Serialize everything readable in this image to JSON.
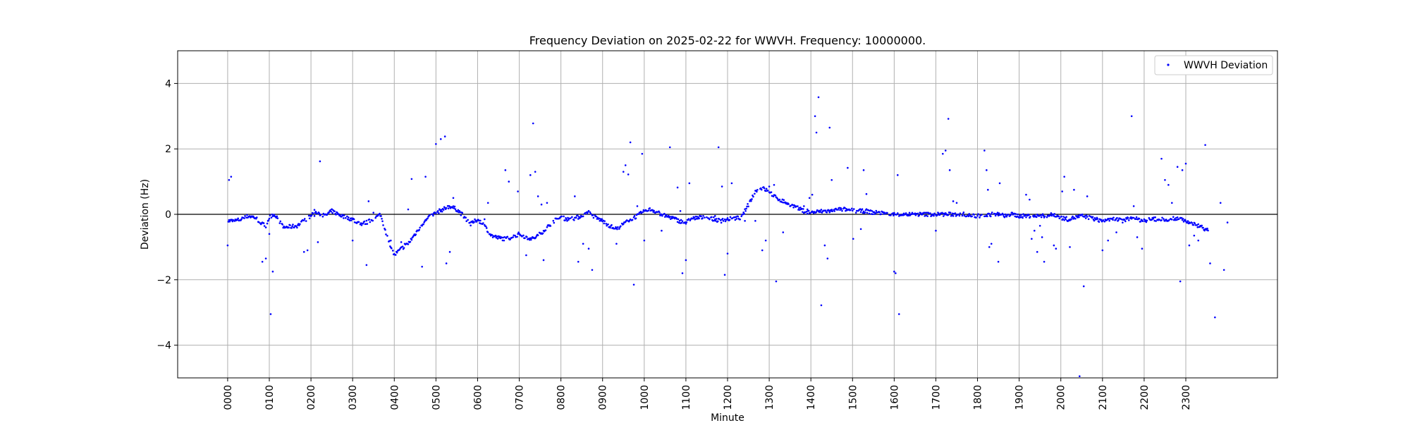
{
  "chart_data": {
    "type": "scatter",
    "title": "Frequency Deviation on 2025-02-22 for WWVH. Frequency: 10000000.",
    "xlabel": "Minute",
    "ylabel": "Deviation (Hz)",
    "xlim": [
      -72,
      1512
    ],
    "ylim": [
      -5,
      5
    ],
    "y_ticks": [
      -4,
      -2,
      0,
      2,
      4
    ],
    "y_tick_labels": [
      "−4",
      "−2",
      "0",
      "2",
      "4"
    ],
    "x_ticks": [
      0,
      60,
      120,
      180,
      240,
      300,
      360,
      420,
      480,
      540,
      600,
      660,
      720,
      780,
      840,
      900,
      960,
      1020,
      1080,
      1140,
      1200,
      1260,
      1320,
      1380
    ],
    "x_tick_labels": [
      "0000",
      "0100",
      "0200",
      "0300",
      "0400",
      "0500",
      "0600",
      "0700",
      "0800",
      "0900",
      "1000",
      "1100",
      "1200",
      "1300",
      "1400",
      "1500",
      "1600",
      "1700",
      "1800",
      "1900",
      "2000",
      "2100",
      "2200",
      "2300"
    ],
    "grid": true,
    "zero_line": true,
    "legend_position": "top-right",
    "colors": {
      "series": "#0000ff",
      "grid": "#b0b0b0",
      "zero_line": "#000000"
    },
    "series": [
      {
        "name": "WWVH Deviation",
        "marker": "dot",
        "baseline": [
          [
            0,
            -0.2
          ],
          [
            10,
            -0.2
          ],
          [
            20,
            -0.15
          ],
          [
            30,
            -0.05
          ],
          [
            40,
            -0.1
          ],
          [
            50,
            -0.3
          ],
          [
            55,
            -0.35
          ],
          [
            60,
            -0.1
          ],
          [
            65,
            0.0
          ],
          [
            70,
            -0.05
          ],
          [
            80,
            -0.4
          ],
          [
            90,
            -0.38
          ],
          [
            100,
            -0.35
          ],
          [
            110,
            -0.2
          ],
          [
            120,
            -0.05
          ],
          [
            125,
            0.1
          ],
          [
            130,
            0.05
          ],
          [
            140,
            -0.05
          ],
          [
            150,
            0.1
          ],
          [
            160,
            0.0
          ],
          [
            170,
            -0.1
          ],
          [
            180,
            -0.15
          ],
          [
            190,
            -0.3
          ],
          [
            200,
            -0.25
          ],
          [
            210,
            -0.15
          ],
          [
            220,
            0.0
          ],
          [
            230,
            -0.7
          ],
          [
            240,
            -1.25
          ],
          [
            250,
            -1.05
          ],
          [
            260,
            -0.9
          ],
          [
            270,
            -0.6
          ],
          [
            280,
            -0.3
          ],
          [
            290,
            -0.1
          ],
          [
            300,
            0.05
          ],
          [
            310,
            0.15
          ],
          [
            320,
            0.25
          ],
          [
            330,
            0.15
          ],
          [
            340,
            -0.05
          ],
          [
            350,
            -0.3
          ],
          [
            360,
            -0.15
          ],
          [
            370,
            -0.35
          ],
          [
            380,
            -0.65
          ],
          [
            390,
            -0.72
          ],
          [
            400,
            -0.75
          ],
          [
            410,
            -0.7
          ],
          [
            420,
            -0.6
          ],
          [
            430,
            -0.7
          ],
          [
            440,
            -0.75
          ],
          [
            450,
            -0.6
          ],
          [
            460,
            -0.4
          ],
          [
            470,
            -0.2
          ],
          [
            480,
            -0.1
          ],
          [
            490,
            -0.15
          ],
          [
            500,
            -0.12
          ],
          [
            510,
            -0.05
          ],
          [
            520,
            0.05
          ],
          [
            530,
            -0.1
          ],
          [
            540,
            -0.2
          ],
          [
            550,
            -0.35
          ],
          [
            560,
            -0.45
          ],
          [
            570,
            -0.3
          ],
          [
            580,
            -0.15
          ],
          [
            590,
            -0.05
          ],
          [
            600,
            0.1
          ],
          [
            610,
            0.15
          ],
          [
            620,
            0.05
          ],
          [
            630,
            -0.05
          ],
          [
            640,
            -0.1
          ],
          [
            650,
            -0.2
          ],
          [
            660,
            -0.25
          ],
          [
            670,
            -0.12
          ],
          [
            680,
            -0.1
          ],
          [
            690,
            -0.1
          ],
          [
            700,
            -0.15
          ],
          [
            710,
            -0.2
          ],
          [
            720,
            -0.15
          ],
          [
            740,
            -0.1
          ],
          [
            760,
            0.7
          ],
          [
            770,
            0.8
          ],
          [
            780,
            0.7
          ],
          [
            790,
            0.5
          ],
          [
            800,
            0.4
          ],
          [
            810,
            0.3
          ],
          [
            820,
            0.2
          ],
          [
            830,
            0.1
          ],
          [
            840,
            0.05
          ],
          [
            850,
            0.08
          ],
          [
            860,
            0.1
          ],
          [
            870,
            0.1
          ],
          [
            880,
            0.15
          ],
          [
            890,
            0.15
          ],
          [
            900,
            0.12
          ],
          [
            910,
            0.1
          ],
          [
            920,
            0.1
          ],
          [
            930,
            0.05
          ],
          [
            940,
            0.05
          ],
          [
            950,
            0.0
          ],
          [
            960,
            0.0
          ],
          [
            970,
            0.0
          ],
          [
            980,
            0.0
          ],
          [
            990,
            0.0
          ],
          [
            1000,
            0.0
          ],
          [
            1010,
            0.0
          ],
          [
            1020,
            0.0
          ],
          [
            1030,
            0.0
          ],
          [
            1040,
            0.0
          ],
          [
            1050,
            0.0
          ],
          [
            1060,
            0.0
          ],
          [
            1070,
            -0.05
          ],
          [
            1080,
            -0.05
          ],
          [
            1090,
            -0.05
          ],
          [
            1100,
            0.0
          ],
          [
            1110,
            0.0
          ],
          [
            1120,
            -0.05
          ],
          [
            1130,
            0.0
          ],
          [
            1140,
            -0.05
          ],
          [
            1150,
            -0.05
          ],
          [
            1160,
            -0.05
          ],
          [
            1170,
            -0.05
          ],
          [
            1180,
            -0.05
          ],
          [
            1190,
            0.0
          ],
          [
            1200,
            -0.1
          ],
          [
            1210,
            -0.15
          ],
          [
            1220,
            -0.1
          ],
          [
            1230,
            -0.05
          ],
          [
            1240,
            -0.1
          ],
          [
            1250,
            -0.15
          ],
          [
            1260,
            -0.2
          ],
          [
            1270,
            -0.15
          ],
          [
            1280,
            -0.15
          ],
          [
            1290,
            -0.2
          ],
          [
            1300,
            -0.1
          ],
          [
            1310,
            -0.15
          ],
          [
            1320,
            -0.2
          ],
          [
            1330,
            -0.15
          ],
          [
            1340,
            -0.15
          ],
          [
            1350,
            -0.15
          ],
          [
            1360,
            -0.15
          ],
          [
            1370,
            -0.1
          ],
          [
            1380,
            -0.2
          ],
          [
            1390,
            -0.3
          ],
          [
            1400,
            -0.35
          ],
          [
            1412,
            -0.5
          ]
        ],
        "outliers": [
          [
            0,
            -0.95
          ],
          [
            2,
            1.05
          ],
          [
            5,
            1.15
          ],
          [
            50,
            -1.45
          ],
          [
            55,
            -1.35
          ],
          [
            60,
            -0.6
          ],
          [
            62,
            -3.05
          ],
          [
            65,
            -1.75
          ],
          [
            110,
            -1.15
          ],
          [
            115,
            -1.1
          ],
          [
            125,
            -0.05
          ],
          [
            130,
            -0.85
          ],
          [
            133,
            1.62
          ],
          [
            180,
            -0.8
          ],
          [
            200,
            -1.55
          ],
          [
            203,
            0.4
          ],
          [
            210,
            0.05
          ],
          [
            235,
            -0.8
          ],
          [
            250,
            -0.85
          ],
          [
            255,
            -0.9
          ],
          [
            260,
            0.15
          ],
          [
            265,
            1.08
          ],
          [
            280,
            -1.6
          ],
          [
            285,
            1.15
          ],
          [
            315,
            -1.5
          ],
          [
            320,
            -1.15
          ],
          [
            325,
            0.5
          ],
          [
            300,
            2.15
          ],
          [
            307,
            2.3
          ],
          [
            313,
            2.38
          ],
          [
            370,
            -0.15
          ],
          [
            375,
            0.35
          ],
          [
            400,
            1.35
          ],
          [
            405,
            1.0
          ],
          [
            418,
            0.7
          ],
          [
            430,
            -1.25
          ],
          [
            436,
            1.2
          ],
          [
            440,
            2.78
          ],
          [
            443,
            1.3
          ],
          [
            447,
            0.55
          ],
          [
            452,
            0.3
          ],
          [
            455,
            -1.4
          ],
          [
            460,
            0.35
          ],
          [
            500,
            0.55
          ],
          [
            505,
            -1.45
          ],
          [
            512,
            -0.9
          ],
          [
            520,
            -1.05
          ],
          [
            525,
            -1.7
          ],
          [
            560,
            -0.9
          ],
          [
            570,
            1.3
          ],
          [
            573,
            1.5
          ],
          [
            577,
            1.22
          ],
          [
            580,
            2.2
          ],
          [
            585,
            -2.15
          ],
          [
            590,
            0.25
          ],
          [
            597,
            1.85
          ],
          [
            600,
            -0.8
          ],
          [
            625,
            -0.5
          ],
          [
            637,
            2.05
          ],
          [
            648,
            0.82
          ],
          [
            652,
            0.1
          ],
          [
            655,
            -1.8
          ],
          [
            660,
            -1.4
          ],
          [
            665,
            0.95
          ],
          [
            702,
            -0.05
          ],
          [
            707,
            2.05
          ],
          [
            712,
            0.85
          ],
          [
            716,
            -1.85
          ],
          [
            720,
            -1.2
          ],
          [
            726,
            0.95
          ],
          [
            745,
            -0.2
          ],
          [
            760,
            -0.2
          ],
          [
            770,
            -1.1
          ],
          [
            775,
            -0.8
          ],
          [
            780,
            0.85
          ],
          [
            787,
            0.9
          ],
          [
            790,
            -2.05
          ],
          [
            800,
            -0.55
          ],
          [
            830,
            0.25
          ],
          [
            835,
            0.15
          ],
          [
            838,
            0.5
          ],
          [
            842,
            0.6
          ],
          [
            846,
            3.0
          ],
          [
            848,
            2.5
          ],
          [
            851,
            3.58
          ],
          [
            855,
            -2.78
          ],
          [
            860,
            -0.95
          ],
          [
            864,
            -1.35
          ],
          [
            867,
            2.65
          ],
          [
            870,
            1.05
          ],
          [
            893,
            1.42
          ],
          [
            901,
            -0.75
          ],
          [
            912,
            -0.45
          ],
          [
            916,
            1.35
          ],
          [
            920,
            0.62
          ],
          [
            960,
            -1.75
          ],
          [
            962,
            -1.8
          ],
          [
            965,
            1.2
          ],
          [
            967,
            -3.05
          ],
          [
            1020,
            -0.5
          ],
          [
            1030,
            1.85
          ],
          [
            1034,
            1.95
          ],
          [
            1038,
            2.92
          ],
          [
            1040,
            1.35
          ],
          [
            1045,
            0.4
          ],
          [
            1050,
            0.35
          ],
          [
            1090,
            1.95
          ],
          [
            1093,
            1.35
          ],
          [
            1095,
            0.75
          ],
          [
            1097,
            -1.0
          ],
          [
            1100,
            -0.9
          ],
          [
            1110,
            -1.45
          ],
          [
            1112,
            0.95
          ],
          [
            1150,
            0.6
          ],
          [
            1155,
            0.45
          ],
          [
            1158,
            -0.75
          ],
          [
            1162,
            -0.5
          ],
          [
            1166,
            -1.15
          ],
          [
            1170,
            -0.35
          ],
          [
            1173,
            -0.7
          ],
          [
            1176,
            -1.45
          ],
          [
            1190,
            -0.95
          ],
          [
            1193,
            -1.05
          ],
          [
            1202,
            0.7
          ],
          [
            1205,
            1.15
          ],
          [
            1213,
            -1.0
          ],
          [
            1219,
            0.75
          ],
          [
            1227,
            -4.95
          ],
          [
            1233,
            -2.2
          ],
          [
            1238,
            0.55
          ],
          [
            1260,
            -1.1
          ],
          [
            1268,
            -0.8
          ],
          [
            1280,
            -0.55
          ],
          [
            1302,
            3.0
          ],
          [
            1305,
            0.25
          ],
          [
            1310,
            -0.7
          ],
          [
            1317,
            -1.05
          ],
          [
            1345,
            1.7
          ],
          [
            1350,
            1.05
          ],
          [
            1355,
            0.9
          ],
          [
            1360,
            0.35
          ],
          [
            1368,
            1.45
          ],
          [
            1375,
            1.35
          ],
          [
            1380,
            1.55
          ],
          [
            1372,
            -2.05
          ],
          [
            1385,
            -0.95
          ],
          [
            1392,
            -0.65
          ],
          [
            1398,
            -0.8
          ],
          [
            1408,
            2.12
          ],
          [
            1415,
            -1.5
          ],
          [
            1422,
            -3.15
          ],
          [
            1430,
            0.35
          ],
          [
            1435,
            -1.7
          ],
          [
            1440,
            -0.25
          ]
        ]
      }
    ]
  }
}
